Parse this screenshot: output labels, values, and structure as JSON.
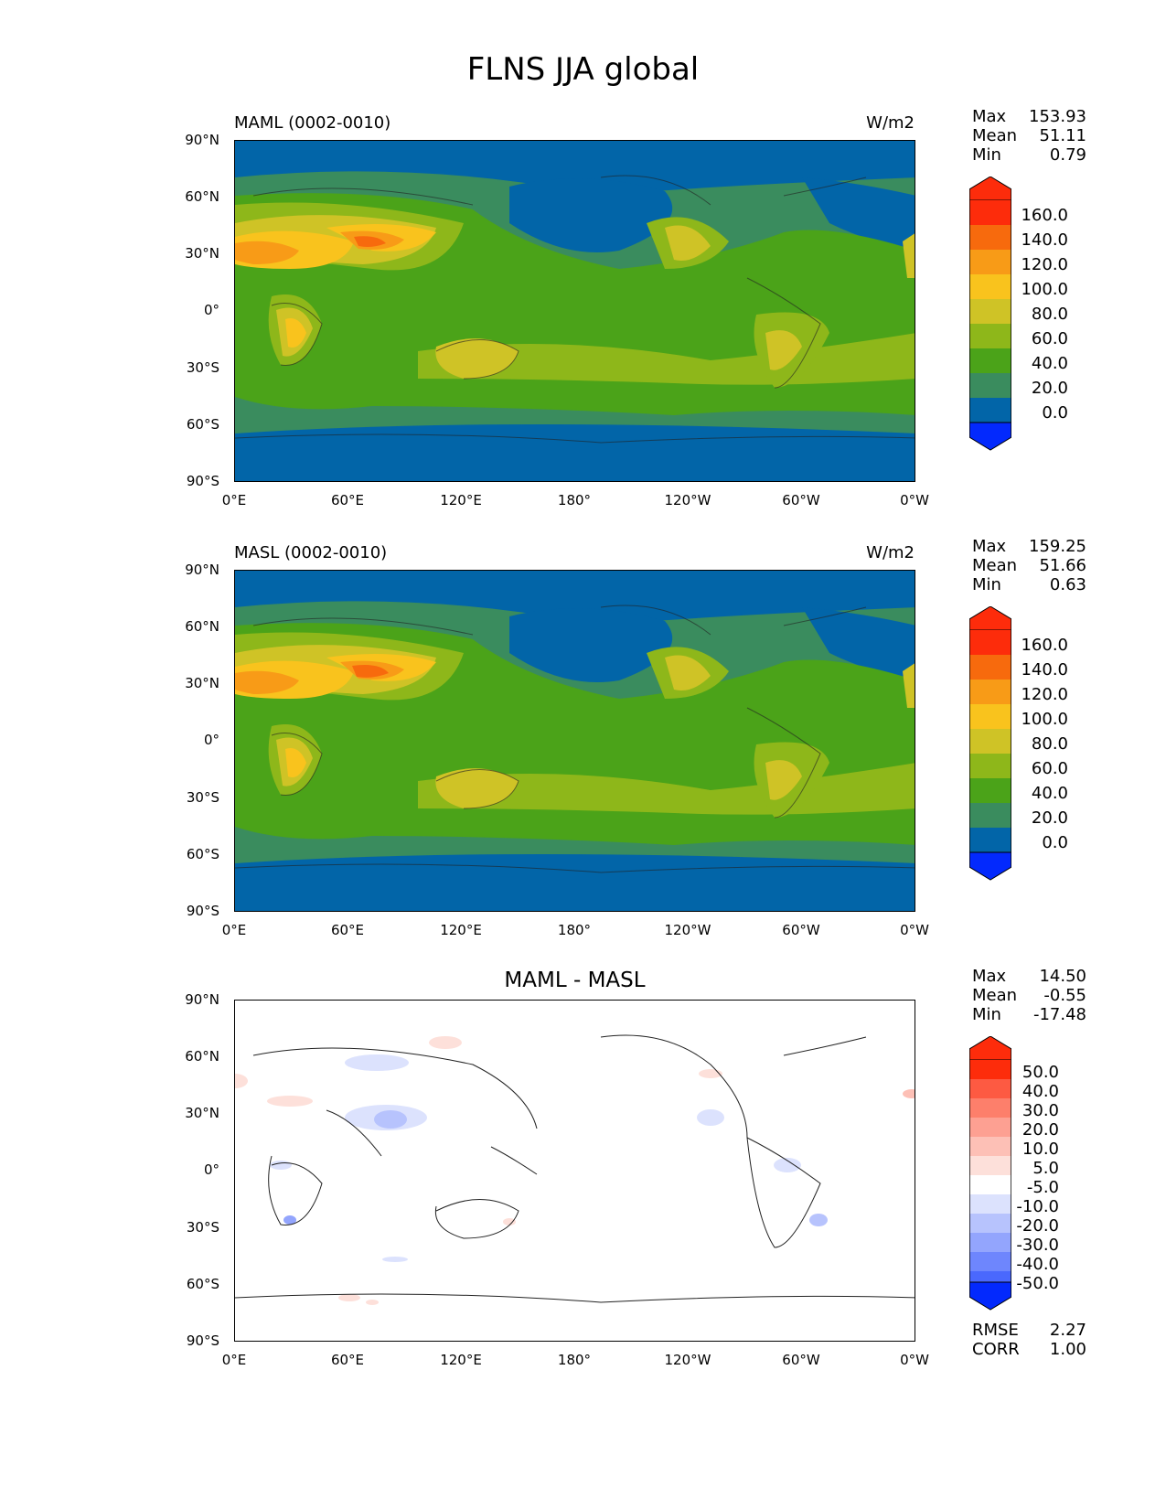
{
  "figure": {
    "title": "FLNS JJA global"
  },
  "axes": {
    "lat_labels": [
      "90°N",
      "60°N",
      "30°N",
      "0°",
      "30°S",
      "60°S",
      "90°S"
    ],
    "lon_labels": [
      "0°E",
      "60°E",
      "120°E",
      "180°",
      "120°W",
      "60°W",
      "0°W"
    ]
  },
  "colors": {
    "ocean_deep": "#0265a8",
    "teal": "#3a8c5e",
    "green": "#4ba319",
    "yellow_green": "#8eb71a",
    "olive_yellow": "#cfc326",
    "gold": "#f9c31d",
    "orange": "#f89b17",
    "dark_orange": "#f76a0d",
    "red": "#fd2c0b",
    "blue": "#0329fd",
    "diff_white": "#ffffff"
  },
  "panels": [
    {
      "id": "maml",
      "title": "MAML (0002-0010)",
      "units": "W/m2",
      "stats": {
        "max_label": "Max",
        "max": "153.93",
        "mean_label": "Mean",
        "mean": "51.11",
        "min_label": "Min",
        "min": "0.79"
      },
      "colorbar": {
        "levels": [
          "160.0",
          "140.0",
          "120.0",
          "100.0",
          "80.0",
          "60.0",
          "40.0",
          "20.0",
          "0.0"
        ],
        "colors": [
          "#fd2c0b",
          "#f76a0d",
          "#f89b17",
          "#f9c31d",
          "#cfc326",
          "#8eb71a",
          "#4ba319",
          "#3a8c5e",
          "#0265a8",
          "#0329fd"
        ]
      }
    },
    {
      "id": "masl",
      "title": "MASL (0002-0010)",
      "units": "W/m2",
      "stats": {
        "max_label": "Max",
        "max": "159.25",
        "mean_label": "Mean",
        "mean": "51.66",
        "min_label": "Min",
        "min": "0.63"
      },
      "colorbar": {
        "levels": [
          "160.0",
          "140.0",
          "120.0",
          "100.0",
          "80.0",
          "60.0",
          "40.0",
          "20.0",
          "0.0"
        ],
        "colors": [
          "#fd2c0b",
          "#f76a0d",
          "#f89b17",
          "#f9c31d",
          "#cfc326",
          "#8eb71a",
          "#4ba319",
          "#3a8c5e",
          "#0265a8",
          "#0329fd"
        ]
      }
    },
    {
      "id": "diff",
      "title": "MAML - MASL",
      "units": "",
      "stats": {
        "max_label": "Max",
        "max": "14.50",
        "mean_label": "Mean",
        "mean": "-0.55",
        "min_label": "Min",
        "min": "-17.48"
      },
      "extra_stats": {
        "rmse_label": "RMSE",
        "rmse": "2.27",
        "corr_label": "CORR",
        "corr": "1.00"
      },
      "colorbar": {
        "levels": [
          "50.0",
          "40.0",
          "30.0",
          "20.0",
          "10.0",
          "5.0",
          "-5.0",
          "-10.0",
          "-20.0",
          "-30.0",
          "-40.0",
          "-50.0"
        ],
        "colors": [
          "#fd2c0b",
          "#fd5a42",
          "#fd7f6b",
          "#fda092",
          "#fdc0b6",
          "#fde0da",
          "#ffffff",
          "#dce2fd",
          "#b7c3fd",
          "#93a5fd",
          "#6e86fd",
          "#4a68fd",
          "#0329fd"
        ]
      }
    }
  ]
}
